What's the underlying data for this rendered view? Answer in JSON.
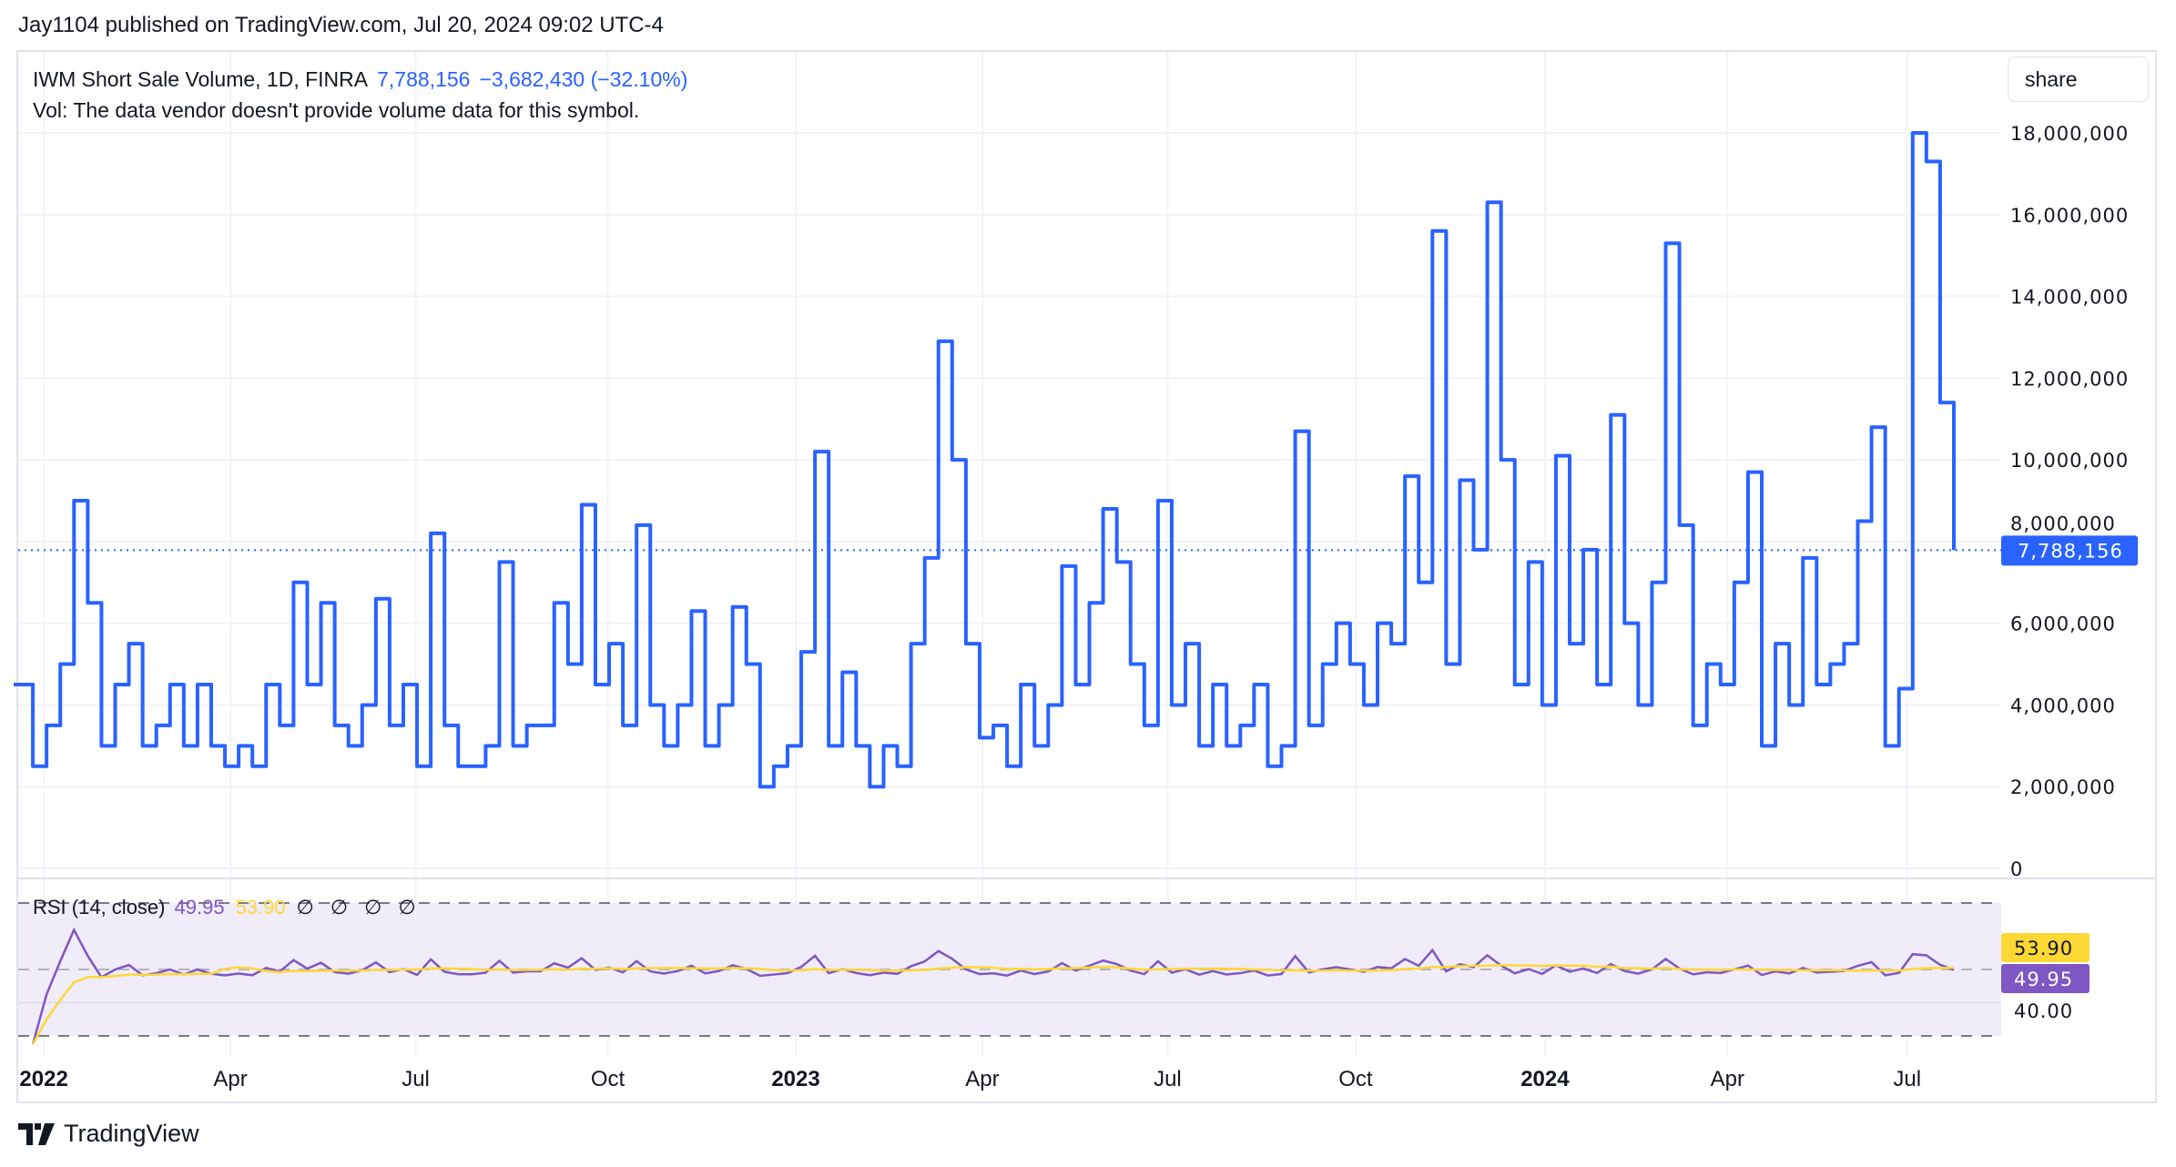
{
  "header": {
    "published": "Jay1104 published on TradingView.com, Jul 20, 2024 09:02 UTC-4"
  },
  "legend": {
    "symbol": "IWM Short Sale Volume, 1D, FINRA",
    "last": "7,788,156",
    "change": "−3,682,430 (−32.10%)",
    "vol_note": "Vol: The data vendor doesn't provide volume data for this symbol."
  },
  "share_button": "share",
  "rsi_legend": {
    "title": "RSI (14, close)",
    "rsi": "49.95",
    "ma": "53.90",
    "placeholders": "∅ ∅ ∅ ∅"
  },
  "brand": "TradingView",
  "colors": {
    "line": "#2962ff",
    "rsi": "#7e57c2",
    "rsi_ma": "#fdd835",
    "band": "#f0ecf9",
    "grid": "#f0f3fa"
  },
  "chart_data": [
    {
      "type": "line",
      "style": "step",
      "title": "IWM Short Sale Volume, 1D, FINRA",
      "ylim": [
        0,
        18500000
      ],
      "y_ticks": [
        "0",
        "2,000,000",
        "4,000,000",
        "6,000,000",
        "8,000,000",
        "10,000,000",
        "12,000,000",
        "14,000,000",
        "16,000,000",
        "18,000,000"
      ],
      "y_tick_values": [
        0,
        2000000,
        4000000,
        6000000,
        8000000,
        10000000,
        12000000,
        14000000,
        16000000,
        18000000
      ],
      "last_value": 7788156,
      "last_label": "7,788,156",
      "grid": true,
      "values_millions": [
        4.5,
        2.5,
        3.5,
        5,
        9,
        6.5,
        3,
        4.5,
        5.5,
        3,
        3.5,
        4.5,
        3,
        4.5,
        3,
        2.5,
        3,
        2.5,
        4.5,
        3.5,
        7,
        4.5,
        6.5,
        3.5,
        3,
        4,
        6.6,
        3.5,
        4.5,
        2.5,
        8.2,
        3.5,
        2.5,
        2.5,
        3,
        7.5,
        3,
        3.5,
        3.5,
        6.5,
        5,
        8.9,
        4.5,
        5.5,
        3.5,
        8.4,
        4,
        3,
        4,
        6.3,
        3,
        4,
        6.4,
        5,
        2,
        2.5,
        3,
        5.3,
        10.2,
        3,
        4.8,
        3,
        2,
        3,
        2.5,
        5.5,
        7.6,
        12.9,
        10,
        5.5,
        3.2,
        3.5,
        2.5,
        4.5,
        3,
        4,
        7.4,
        4.5,
        6.5,
        8.8,
        7.5,
        5,
        3.5,
        9,
        4,
        5.5,
        3,
        4.5,
        3,
        3.5,
        4.5,
        2.5,
        3,
        10.7,
        3.5,
        5,
        6,
        5,
        4,
        6,
        5.5,
        9.6,
        7,
        15.6,
        5,
        9.5,
        7.8,
        16.3,
        10,
        4.5,
        7.5,
        4,
        10.1,
        5.5,
        7.8,
        4.5,
        11.1,
        6,
        4,
        7,
        15.3,
        8.4,
        3.5,
        5,
        4.5,
        7,
        9.7,
        3,
        5.5,
        4,
        7.6,
        4.5,
        5,
        5.5,
        8.5,
        10.8,
        3,
        4.4,
        18,
        17.3,
        11.4,
        7.788
      ],
      "x_ticks": [
        {
          "label": "2022",
          "index": 1.8,
          "bold": true
        },
        {
          "label": "Apr",
          "index": 15.4
        },
        {
          "label": "Jul",
          "index": 28.9
        },
        {
          "label": "Oct",
          "index": 42.9
        },
        {
          "label": "2023",
          "index": 56.6,
          "bold": true
        },
        {
          "label": "Apr",
          "index": 70.2
        },
        {
          "label": "Jul",
          "index": 83.7
        },
        {
          "label": "Oct",
          "index": 97.4
        },
        {
          "label": "2024",
          "index": 111.2,
          "bold": true
        },
        {
          "label": "Apr",
          "index": 124.5
        },
        {
          "label": "Jul",
          "index": 137.6
        }
      ]
    },
    {
      "type": "line",
      "title": "RSI (14, close)",
      "period": 14,
      "ma_period": 14,
      "bands": [
        70,
        30
      ],
      "midline": 50,
      "y_tick": "40.00",
      "y_tick_value": 40,
      "last_rsi": 49.95,
      "last_ma": 53.9,
      "series": [
        {
          "name": "RSI"
        },
        {
          "name": "RSI-based MA"
        }
      ]
    }
  ]
}
